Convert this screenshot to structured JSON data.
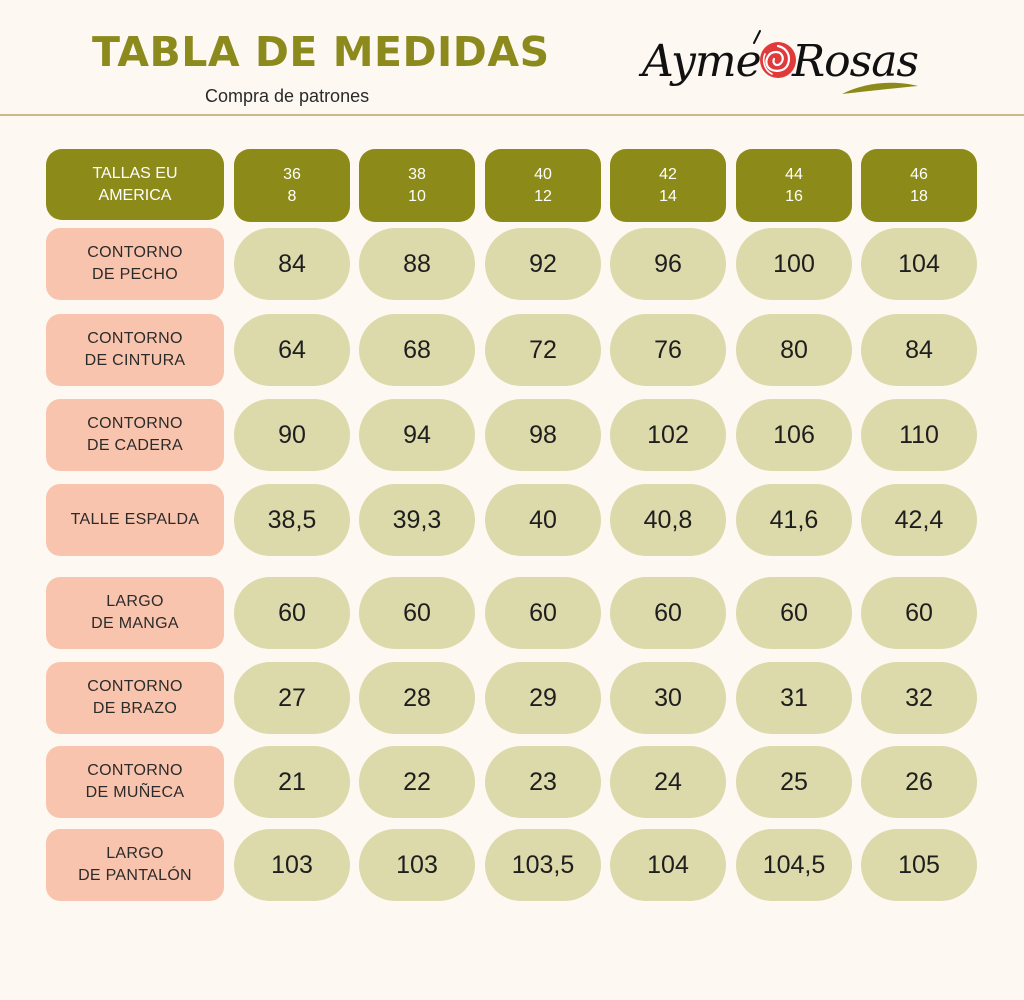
{
  "header": {
    "title": "TABLA DE MEDIDAS",
    "subtitle": "Compra de patrones",
    "logo": {
      "left_word": "Ayme",
      "right_word": "Rosas",
      "rose_color": "#e03a3a",
      "leaf_color": "#8c8a18"
    }
  },
  "colors": {
    "accent": "#8c8a18",
    "label_bg": "#f9c4ad",
    "value_bg": "#dcd9ab",
    "background": "#fdf8f2"
  },
  "table": {
    "corner": {
      "line1": "TALLAS EU",
      "line2": "AMERICA"
    },
    "sizes": [
      {
        "eu": "36",
        "america": "8"
      },
      {
        "eu": "38",
        "america": "10"
      },
      {
        "eu": "40",
        "america": "12"
      },
      {
        "eu": "42",
        "america": "14"
      },
      {
        "eu": "44",
        "america": "16"
      },
      {
        "eu": "46",
        "america": "18"
      }
    ],
    "rows": [
      {
        "line1": "CONTORNO",
        "line2": "DE PECHO",
        "values": [
          "84",
          "88",
          "92",
          "96",
          "100",
          "104"
        ]
      },
      {
        "line1": "CONTORNO",
        "line2": "DE CINTURA",
        "values": [
          "64",
          "68",
          "72",
          "76",
          "80",
          "84"
        ]
      },
      {
        "line1": "CONTORNO",
        "line2": "DE CADERA",
        "values": [
          "90",
          "94",
          "98",
          "102",
          "106",
          "110"
        ]
      },
      {
        "line1": "TALLE ESPALDA",
        "line2": "",
        "values": [
          "38,5",
          "39,3",
          "40",
          "40,8",
          "41,6",
          "42,4"
        ]
      },
      {
        "line1": "LARGO",
        "line2": "DE MANGA",
        "values": [
          "60",
          "60",
          "60",
          "60",
          "60",
          "60"
        ]
      },
      {
        "line1": "CONTORNO",
        "line2": "DE BRAZO",
        "values": [
          "27",
          "28",
          "29",
          "30",
          "31",
          "32"
        ]
      },
      {
        "line1": "CONTORNO",
        "line2": "DE MUÑECA",
        "values": [
          "21",
          "22",
          "23",
          "24",
          "25",
          "26"
        ]
      },
      {
        "line1": "LARGO",
        "line2": "DE PANTALÓN",
        "values": [
          "103",
          "103",
          "103,5",
          "104",
          "104,5",
          "105"
        ]
      }
    ]
  }
}
